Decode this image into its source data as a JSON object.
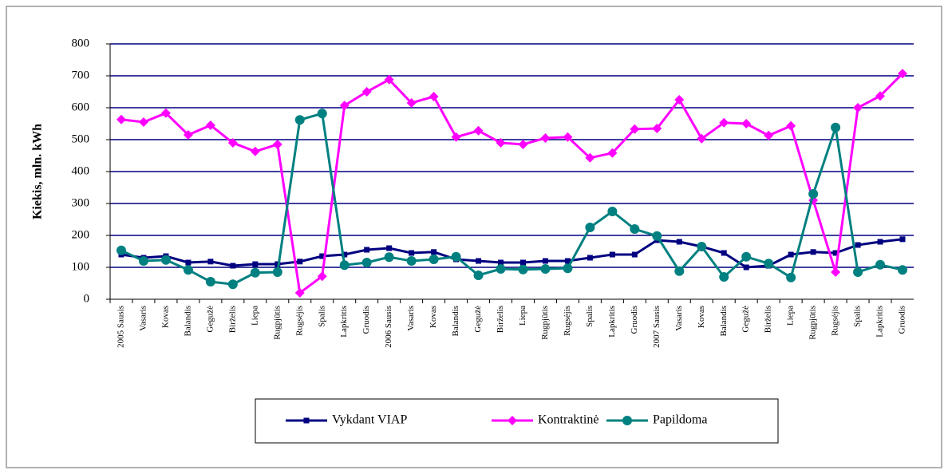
{
  "chart_data": {
    "type": "line",
    "y_label": "Kiekis, mln. kWh",
    "categories": [
      "2005 Sausis",
      "Vasaris",
      "Kovas",
      "Balandis",
      "Gegužė",
      "Birželis",
      "Liepa",
      "Rugpjūtis",
      "Rugsėjis",
      "Spalis",
      "Lapkritis",
      "Gruodis",
      "2006 Sausis",
      "Vasaris",
      "Kovas",
      "Balandis",
      "Gegužė",
      "Birželis",
      "Liepa",
      "Rugpjūtis",
      "Rugsėjis",
      "Spalis",
      "Lapkritis",
      "Gruodis",
      "2007 Sausis",
      "Vasaris",
      "Kovas",
      "Balandis",
      "Gegužė",
      "Birželis",
      "Liepa",
      "Rugpjūtis",
      "Rugsėjis",
      "Spalis",
      "Lapkritis",
      "Gruodis"
    ],
    "series": [
      {
        "name": "Vykdant VIAP",
        "color": "#000080",
        "marker": "square",
        "values": [
          140,
          130,
          135,
          115,
          118,
          105,
          110,
          110,
          118,
          135,
          140,
          155,
          160,
          145,
          148,
          125,
          120,
          115,
          115,
          120,
          120,
          130,
          140,
          140,
          185,
          180,
          165,
          145,
          100,
          105,
          140,
          148,
          145,
          170,
          180,
          188
        ]
      },
      {
        "name": "Kontraktinė",
        "color": "#ff00ff",
        "marker": "diamond",
        "values": [
          563,
          555,
          583,
          515,
          545,
          490,
          463,
          485,
          20,
          72,
          607,
          650,
          688,
          615,
          635,
          508,
          528,
          490,
          485,
          505,
          508,
          443,
          458,
          533,
          535,
          625,
          503,
          553,
          550,
          513,
          543,
          310,
          85,
          600,
          637,
          707
        ]
      },
      {
        "name": "Papildoma",
        "color": "#008080",
        "marker": "circle",
        "values": [
          153,
          120,
          123,
          92,
          55,
          47,
          83,
          85,
          562,
          582,
          107,
          115,
          132,
          120,
          125,
          133,
          75,
          95,
          93,
          95,
          97,
          225,
          275,
          220,
          198,
          88,
          165,
          70,
          133,
          112,
          68,
          330,
          538,
          85,
          108,
          92
        ]
      }
    ],
    "ylim": [
      0,
      800
    ],
    "yticks": [
      0,
      100,
      200,
      300,
      400,
      500,
      600,
      700,
      800
    ],
    "grid": true,
    "grid_color": "#000080"
  }
}
